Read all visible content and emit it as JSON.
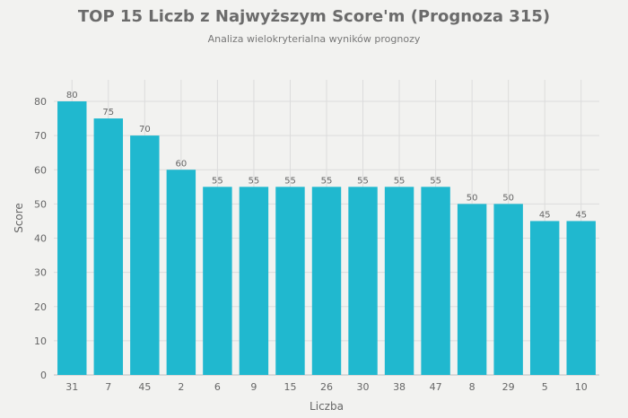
{
  "chart_data": {
    "type": "bar",
    "title": "TOP 15 Liczb z Najwyższym Score'm (Prognoza 315)",
    "subtitle": "Analiza wielokryterialna wyników prognozy",
    "xlabel": "Liczba",
    "ylabel": "Score",
    "categories": [
      "31",
      "7",
      "45",
      "2",
      "6",
      "9",
      "15",
      "26",
      "30",
      "38",
      "47",
      "8",
      "29",
      "5",
      "10"
    ],
    "values": [
      80,
      75,
      70,
      60,
      55,
      55,
      55,
      55,
      55,
      55,
      55,
      50,
      50,
      45,
      45
    ],
    "ylim": [
      0,
      80
    ],
    "yticks": [
      0,
      10,
      20,
      30,
      40,
      50,
      60,
      70,
      80
    ],
    "grid": true,
    "colors": {
      "bar": "#20b8cf",
      "background": "#f2f2f0",
      "grid": "#dcdcdc"
    }
  }
}
